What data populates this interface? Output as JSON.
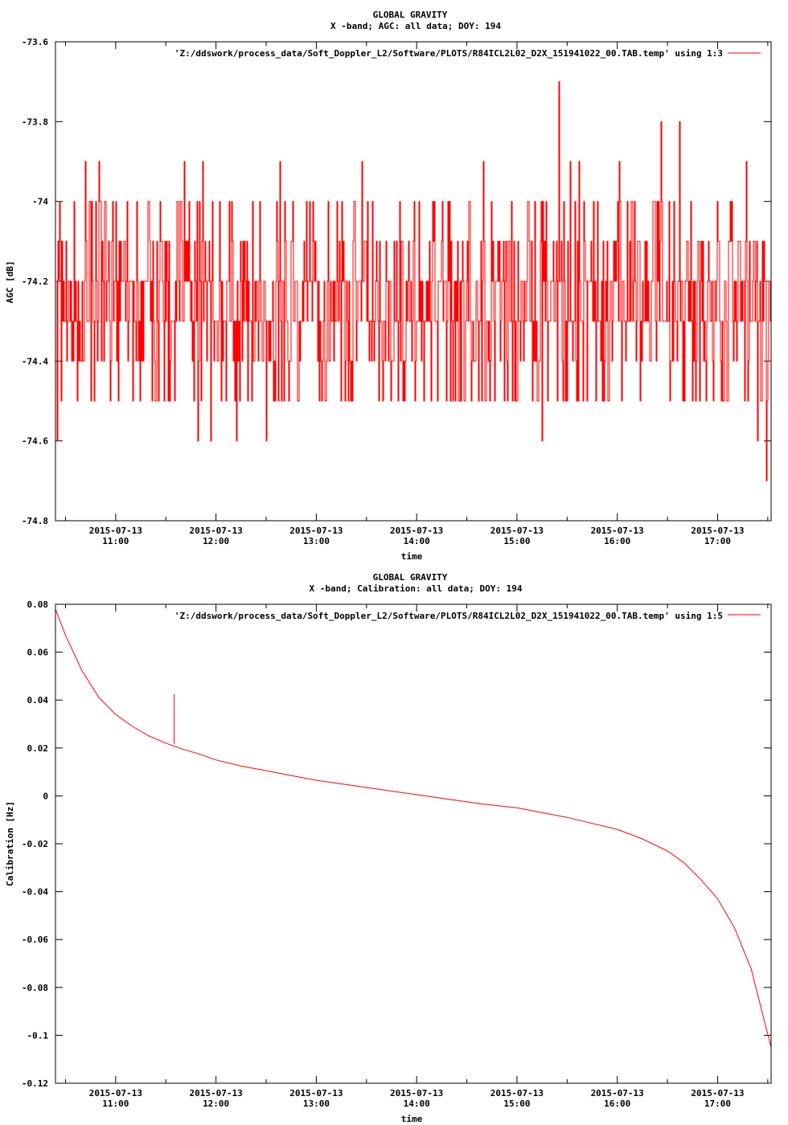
{
  "colors": {
    "series": "#ff0000",
    "axis": "#000000",
    "background": "#ffffff"
  },
  "chart_data": [
    {
      "type": "line",
      "title": "GLOBAL GRAVITY",
      "subtitle": "X -band; AGC: all data; DOY: 194",
      "xlabel": "time",
      "ylabel": "AGC [dB]",
      "legend_placement": "top-right",
      "grid": false,
      "xlim": [
        "2015-07-13T10:24",
        "2015-07-13T17:32"
      ],
      "ylim": [
        -74.8,
        -73.6
      ],
      "yticks": [
        -73.6,
        -73.8,
        -74,
        -74.2,
        -74.4,
        -74.6,
        -74.8
      ],
      "ytick_labels": [
        "-73.6",
        "-73.8",
        "-74",
        "-74.2",
        "-74.4",
        "-74.6",
        "-74.8"
      ],
      "xticks": [
        "2015-07-13T11:00",
        "2015-07-13T12:00",
        "2015-07-13T13:00",
        "2015-07-13T14:00",
        "2015-07-13T15:00",
        "2015-07-13T16:00",
        "2015-07-13T17:00"
      ],
      "xtick_date_labels": [
        "2015-07-13",
        "2015-07-13",
        "2015-07-13",
        "2015-07-13",
        "2015-07-13",
        "2015-07-13",
        "2015-07-13"
      ],
      "xtick_time_labels": [
        "11:00",
        "12:00",
        "13:00",
        "14:00",
        "15:00",
        "16:00",
        "17:00"
      ],
      "series": [
        {
          "name": "'Z:/ddswork/process_data/Soft_Doppler_L2/Software/PLOTS/R84ICL2L02_D2X_151941022_00.TAB.temp' using 1:3",
          "base_level": -74.25,
          "typical_band": [
            -74.4,
            -74.1
          ],
          "spikes": [
            {
              "x": "2015-07-13T10:25",
              "y": -74.6
            },
            {
              "x": "2015-07-13T10:42",
              "y": -73.9
            },
            {
              "x": "2015-07-13T10:50",
              "y": -73.9
            },
            {
              "x": "2015-07-13T11:29",
              "y": -74.5
            },
            {
              "x": "2015-07-13T11:41",
              "y": -73.9
            },
            {
              "x": "2015-07-13T11:49",
              "y": -74.6
            },
            {
              "x": "2015-07-13T11:52",
              "y": -73.9
            },
            {
              "x": "2015-07-13T11:57",
              "y": -74.6
            },
            {
              "x": "2015-07-13T12:12",
              "y": -74.6
            },
            {
              "x": "2015-07-13T12:30",
              "y": -74.6
            },
            {
              "x": "2015-07-13T12:38",
              "y": -73.9
            },
            {
              "x": "2015-07-13T13:27",
              "y": -73.9
            },
            {
              "x": "2015-07-13T14:29",
              "y": -74.5
            },
            {
              "x": "2015-07-13T14:40",
              "y": -73.9
            },
            {
              "x": "2015-07-13T15:15",
              "y": -74.6
            },
            {
              "x": "2015-07-13T15:25",
              "y": -73.7
            },
            {
              "x": "2015-07-13T15:32",
              "y": -73.9
            },
            {
              "x": "2015-07-13T15:37",
              "y": -73.9
            },
            {
              "x": "2015-07-13T16:01",
              "y": -73.9
            },
            {
              "x": "2015-07-13T16:26",
              "y": -73.8
            },
            {
              "x": "2015-07-13T16:37",
              "y": -73.8
            },
            {
              "x": "2015-07-13T16:49",
              "y": -74.5
            },
            {
              "x": "2015-07-13T17:17",
              "y": -73.9
            },
            {
              "x": "2015-07-13T17:24",
              "y": -74.6
            },
            {
              "x": "2015-07-13T17:29",
              "y": -74.7
            }
          ]
        }
      ]
    },
    {
      "type": "line",
      "title": "GLOBAL GRAVITY",
      "subtitle": "X -band; Calibration: all data; DOY: 194",
      "xlabel": "time",
      "ylabel": "Calibration [Hz]",
      "legend_placement": "top-right",
      "grid": false,
      "xlim": [
        "2015-07-13T10:24",
        "2015-07-13T17:32"
      ],
      "ylim": [
        -0.12,
        0.08
      ],
      "yticks": [
        0.08,
        0.06,
        0.04,
        0.02,
        0,
        -0.02,
        -0.04,
        -0.06,
        -0.08,
        -0.1,
        -0.12
      ],
      "ytick_labels": [
        "0.08",
        "0.06",
        "0.04",
        "0.02",
        "0",
        "-0.02",
        "-0.04",
        "-0.06",
        "-0.08",
        "-0.1",
        "-0.12"
      ],
      "xticks": [
        "2015-07-13T11:00",
        "2015-07-13T12:00",
        "2015-07-13T13:00",
        "2015-07-13T14:00",
        "2015-07-13T15:00",
        "2015-07-13T16:00",
        "2015-07-13T17:00"
      ],
      "xtick_date_labels": [
        "2015-07-13",
        "2015-07-13",
        "2015-07-13",
        "2015-07-13",
        "2015-07-13",
        "2015-07-13",
        "2015-07-13"
      ],
      "xtick_time_labels": [
        "11:00",
        "12:00",
        "13:00",
        "14:00",
        "15:00",
        "16:00",
        "17:00"
      ],
      "series": [
        {
          "name": "'Z:/ddswork/process_data/Soft_Doppler_L2/Software/PLOTS/R84ICL2L02_D2X_151941022_00.TAB.temp' using 1:5",
          "x": [
            "2015-07-13T10:24",
            "2015-07-13T10:30",
            "2015-07-13T10:40",
            "2015-07-13T10:50",
            "2015-07-13T11:00",
            "2015-07-13T11:10",
            "2015-07-13T11:20",
            "2015-07-13T11:30",
            "2015-07-13T11:40",
            "2015-07-13T11:50",
            "2015-07-13T12:00",
            "2015-07-13T12:15",
            "2015-07-13T12:30",
            "2015-07-13T12:45",
            "2015-07-13T13:00",
            "2015-07-13T13:20",
            "2015-07-13T13:40",
            "2015-07-13T14:00",
            "2015-07-13T14:20",
            "2015-07-13T14:40",
            "2015-07-13T15:00",
            "2015-07-13T15:15",
            "2015-07-13T15:30",
            "2015-07-13T15:45",
            "2015-07-13T16:00",
            "2015-07-13T16:15",
            "2015-07-13T16:30",
            "2015-07-13T16:40",
            "2015-07-13T16:50",
            "2015-07-13T17:00",
            "2015-07-13T17:10",
            "2015-07-13T17:20",
            "2015-07-13T17:32"
          ],
          "y": [
            0.078,
            0.067,
            0.052,
            0.041,
            0.034,
            0.029,
            0.025,
            0.022,
            0.0195,
            0.0175,
            0.015,
            0.0125,
            0.0105,
            0.0085,
            0.0065,
            0.0045,
            0.0025,
            0.0005,
            -0.0015,
            -0.0035,
            -0.005,
            -0.007,
            -0.009,
            -0.0115,
            -0.014,
            -0.018,
            -0.023,
            -0.028,
            -0.035,
            -0.043,
            -0.055,
            -0.072,
            -0.105
          ],
          "spike": {
            "x": "2015-07-13T11:35",
            "y_from": 0.0215,
            "y_to": 0.0425
          }
        }
      ]
    }
  ]
}
